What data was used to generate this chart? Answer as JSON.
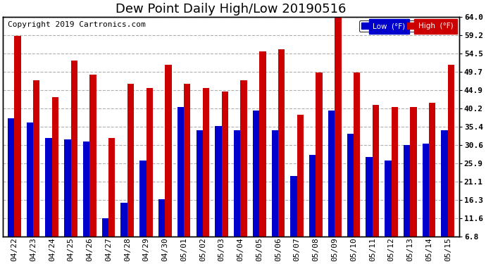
{
  "title": "Dew Point Daily High/Low 20190516",
  "copyright": "Copyright 2019 Cartronics.com",
  "ylabel_right_ticks": [
    6.8,
    11.6,
    16.3,
    21.1,
    25.9,
    30.6,
    35.4,
    40.2,
    44.9,
    49.7,
    54.5,
    59.2,
    64.0
  ],
  "dates": [
    "04/22",
    "04/23",
    "04/24",
    "04/25",
    "04/26",
    "04/27",
    "04/28",
    "04/29",
    "04/30",
    "05/01",
    "05/02",
    "05/03",
    "05/04",
    "05/05",
    "05/06",
    "05/07",
    "05/08",
    "05/09",
    "05/10",
    "05/11",
    "05/12",
    "05/13",
    "05/14",
    "05/15"
  ],
  "low_values": [
    37.5,
    36.5,
    32.5,
    32.0,
    31.5,
    11.5,
    15.5,
    26.5,
    16.5,
    40.5,
    34.5,
    35.5,
    34.5,
    39.5,
    34.5,
    22.5,
    28.0,
    39.5,
    33.5,
    27.5,
    26.5,
    30.5,
    31.0,
    34.5
  ],
  "high_values": [
    59.0,
    47.5,
    43.0,
    52.5,
    49.0,
    32.5,
    46.5,
    45.5,
    51.5,
    46.5,
    45.5,
    44.5,
    47.5,
    55.0,
    55.5,
    38.5,
    49.5,
    64.0,
    49.5,
    41.0,
    40.5,
    40.5,
    41.5,
    51.5
  ],
  "low_color": "#0000cc",
  "high_color": "#cc0000",
  "bg_color": "#ffffff",
  "grid_color": "#b0b0b0",
  "title_fontsize": 13,
  "copyright_fontsize": 8,
  "tick_fontsize": 8,
  "legend_low_label": "Low  (°F)",
  "legend_high_label": "High  (°F)",
  "ymin": 6.8,
  "ymax": 64.0,
  "bar_width": 0.35
}
